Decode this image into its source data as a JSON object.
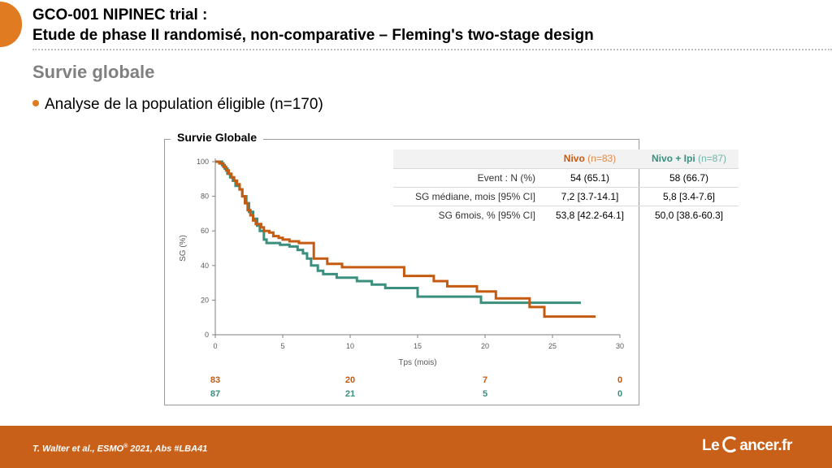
{
  "header": {
    "title_line1": "GCO-001 NIPINEC trial :",
    "title_line2": "Etude de phase II randomisé, non-comparative – Fleming's two-stage design"
  },
  "section": {
    "heading": "Survie globale",
    "bullet": "Analyse de la population éligible (n=170)"
  },
  "colors": {
    "accent": "#e07b22",
    "footer": "#c9601a",
    "nivo": "#c55a11",
    "combo": "#3a8f7e"
  },
  "chart_data": {
    "type": "line",
    "title": "Survie Globale",
    "xlabel": "Tps (mois)",
    "ylabel": "SG (%)",
    "xlim": [
      0,
      30
    ],
    "ylim": [
      0,
      100
    ],
    "xticks": [
      0,
      5,
      10,
      15,
      20,
      25,
      30
    ],
    "yticks": [
      0,
      20,
      40,
      60,
      80,
      100
    ],
    "grid": false,
    "series": [
      {
        "name": "Nivo",
        "color": "#c55a11",
        "points": [
          [
            0,
            100
          ],
          [
            0.3,
            100
          ],
          [
            0.3,
            99
          ],
          [
            0.6,
            99
          ],
          [
            0.6,
            97
          ],
          [
            0.8,
            97
          ],
          [
            0.8,
            95
          ],
          [
            1.0,
            95
          ],
          [
            1.0,
            93
          ],
          [
            1.2,
            93
          ],
          [
            1.2,
            91
          ],
          [
            1.4,
            91
          ],
          [
            1.4,
            89
          ],
          [
            1.6,
            89
          ],
          [
            1.6,
            87
          ],
          [
            1.8,
            87
          ],
          [
            1.8,
            84
          ],
          [
            2.0,
            84
          ],
          [
            2.0,
            80
          ],
          [
            2.2,
            80
          ],
          [
            2.2,
            76
          ],
          [
            2.4,
            76
          ],
          [
            2.4,
            72
          ],
          [
            2.6,
            72
          ],
          [
            2.6,
            69
          ],
          [
            2.8,
            69
          ],
          [
            2.8,
            66
          ],
          [
            3.0,
            66
          ],
          [
            3.0,
            64
          ],
          [
            3.4,
            64
          ],
          [
            3.4,
            62
          ],
          [
            3.6,
            62
          ],
          [
            3.6,
            60
          ],
          [
            4.0,
            60
          ],
          [
            4.0,
            59
          ],
          [
            4.3,
            59
          ],
          [
            4.3,
            57
          ],
          [
            4.7,
            57
          ],
          [
            4.7,
            56
          ],
          [
            5.0,
            56
          ],
          [
            5.0,
            55
          ],
          [
            5.5,
            55
          ],
          [
            5.5,
            54
          ],
          [
            6.2,
            54
          ],
          [
            6.2,
            53
          ],
          [
            7.3,
            53
          ],
          [
            7.3,
            44
          ],
          [
            8.3,
            44
          ],
          [
            8.3,
            41
          ],
          [
            9.4,
            41
          ],
          [
            9.4,
            39
          ],
          [
            14.0,
            39
          ],
          [
            14.0,
            34
          ],
          [
            16.2,
            34
          ],
          [
            16.2,
            31
          ],
          [
            17.2,
            31
          ],
          [
            17.2,
            28
          ],
          [
            19.4,
            28
          ],
          [
            19.4,
            25
          ],
          [
            20.8,
            25
          ],
          [
            20.8,
            21
          ],
          [
            23.3,
            21
          ],
          [
            23.3,
            16
          ],
          [
            24.4,
            16
          ],
          [
            24.4,
            10.5
          ],
          [
            28.2,
            10.5
          ]
        ]
      },
      {
        "name": "Nivo + Ipi",
        "color": "#3a8f7e",
        "points": [
          [
            0,
            100
          ],
          [
            0.5,
            100
          ],
          [
            0.5,
            98
          ],
          [
            0.7,
            98
          ],
          [
            0.7,
            96
          ],
          [
            0.9,
            96
          ],
          [
            0.9,
            93
          ],
          [
            1.1,
            93
          ],
          [
            1.1,
            91
          ],
          [
            1.3,
            91
          ],
          [
            1.3,
            89
          ],
          [
            1.5,
            89
          ],
          [
            1.5,
            86
          ],
          [
            1.8,
            86
          ],
          [
            1.8,
            84
          ],
          [
            2.0,
            84
          ],
          [
            2.0,
            80
          ],
          [
            2.3,
            80
          ],
          [
            2.3,
            76
          ],
          [
            2.5,
            76
          ],
          [
            2.5,
            71
          ],
          [
            2.8,
            71
          ],
          [
            2.8,
            67
          ],
          [
            3.1,
            67
          ],
          [
            3.1,
            63
          ],
          [
            3.3,
            63
          ],
          [
            3.3,
            60
          ],
          [
            3.6,
            60
          ],
          [
            3.6,
            55
          ],
          [
            3.8,
            55
          ],
          [
            3.8,
            53
          ],
          [
            4.8,
            53
          ],
          [
            4.8,
            52
          ],
          [
            5.5,
            52
          ],
          [
            5.5,
            51
          ],
          [
            6.1,
            51
          ],
          [
            6.1,
            49
          ],
          [
            6.5,
            49
          ],
          [
            6.5,
            47
          ],
          [
            6.8,
            47
          ],
          [
            6.8,
            44
          ],
          [
            7.1,
            44
          ],
          [
            7.1,
            40
          ],
          [
            7.6,
            40
          ],
          [
            7.6,
            37
          ],
          [
            8.0,
            37
          ],
          [
            8.0,
            35
          ],
          [
            9.0,
            35
          ],
          [
            9.0,
            33
          ],
          [
            10.5,
            33
          ],
          [
            10.5,
            31
          ],
          [
            11.6,
            31
          ],
          [
            11.6,
            29
          ],
          [
            12.6,
            29
          ],
          [
            12.6,
            27
          ],
          [
            15.0,
            27
          ],
          [
            15.0,
            22
          ],
          [
            19.7,
            22
          ],
          [
            19.7,
            18.5
          ],
          [
            27.1,
            18.5
          ]
        ]
      }
    ],
    "at_risk": {
      "times": [
        0,
        10,
        20,
        30
      ],
      "nivo": [
        83,
        20,
        7,
        0
      ],
      "combo": [
        87,
        21,
        5,
        0
      ]
    },
    "table": {
      "headers": [
        "",
        "Nivo",
        "(n=83)",
        "Nivo + Ipi",
        "(n=87)"
      ],
      "rows": [
        {
          "label": "Event : N (%)",
          "nivo": "54 (65.1)",
          "combo": "58 (66.7)"
        },
        {
          "label": "SG médiane, mois [95% CI]",
          "nivo": "7,2 [3.7-14.1]",
          "combo": "5,8 [3.4-7.6]"
        },
        {
          "label": "SG 6mois, % [95% CI]",
          "nivo": "53,8 [42.2-64.1]",
          "combo": "50,0 [38.6-60.3]"
        }
      ]
    }
  },
  "footer": {
    "citation_pre": "T. Walter et al., ESMO",
    "citation_sup": "®",
    "citation_post": " 2021, Abs #LBA41",
    "brand_pre": "Le",
    "brand_post": "ancer.fr"
  }
}
